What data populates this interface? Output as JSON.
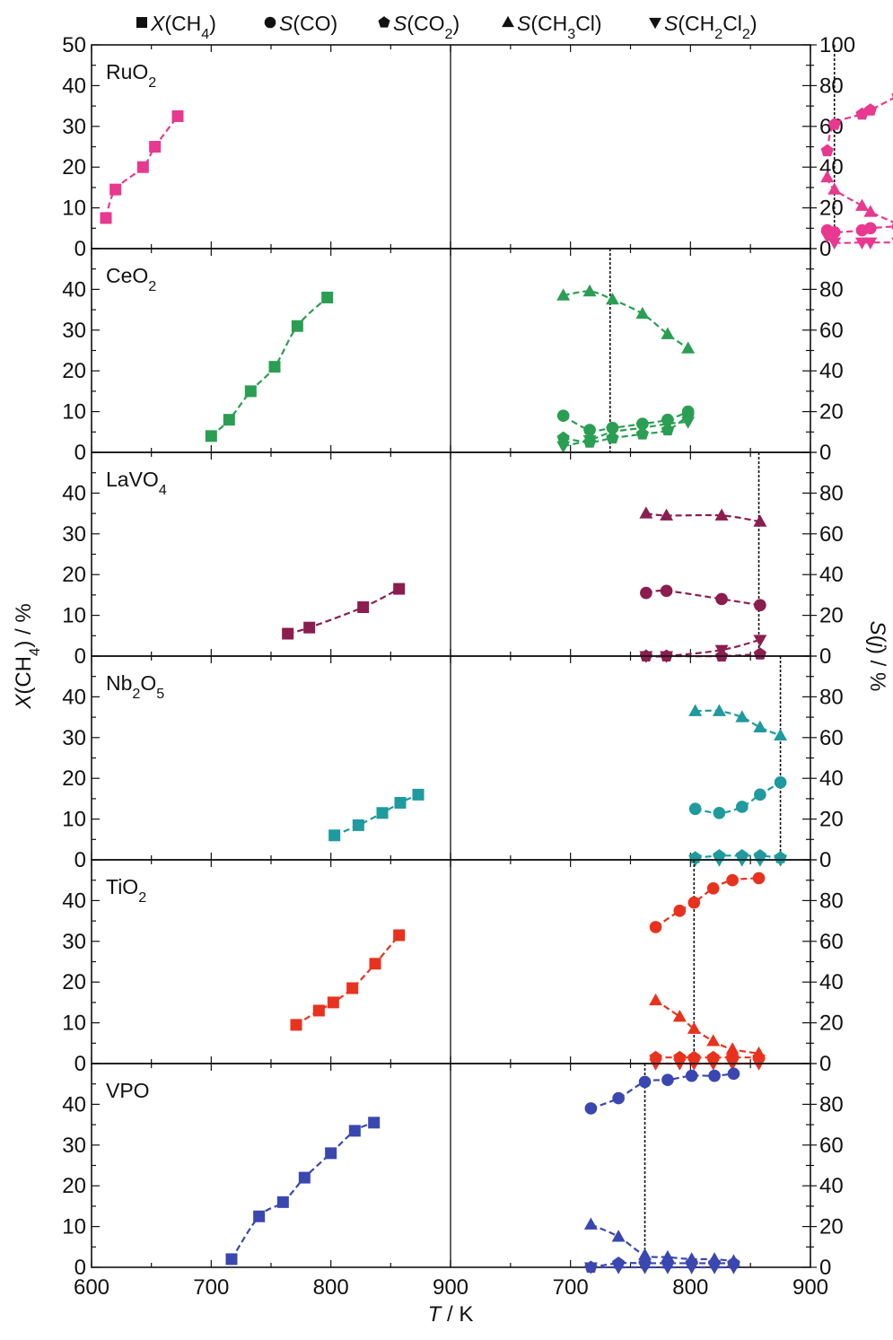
{
  "chart_data": {
    "type": "scatter",
    "legend": {
      "placement": "top",
      "entries": [
        {
          "key": "X_CH4",
          "marker": "square",
          "label_main": "X",
          "label_sub": "(CH",
          "sub": "4",
          "tail": ")"
        },
        {
          "key": "S_CO",
          "marker": "circle",
          "label_main": "S",
          "label_sub": "(CO)",
          "sub": "",
          "tail": ""
        },
        {
          "key": "S_CO2",
          "marker": "pentagon",
          "label_main": "S",
          "label_sub": "(CO",
          "sub": "2",
          "tail": ")"
        },
        {
          "key": "S_CH3Cl",
          "marker": "triangle-up",
          "label_main": "S",
          "label_sub": "(CH",
          "sub": "3",
          "tail": "Cl)"
        },
        {
          "key": "S_CH2Cl2",
          "marker": "triangle-down",
          "label_main": "S",
          "label_sub": "(CH",
          "sub": "2",
          "tail": "Cl",
          "sub2": "2",
          "tail2": ")"
        }
      ]
    },
    "x_axis": {
      "label_main": "T",
      "label_tail": " / K",
      "left_xlim": [
        600,
        900
      ],
      "right_xlim": [
        600,
        900
      ],
      "left_ticks": [
        "600",
        "700",
        "800",
        "900"
      ],
      "right_ticks": [
        "700",
        "800",
        "900"
      ]
    },
    "y_left": {
      "label_main": "X",
      "label_tail": "(CH",
      "sub": "4",
      "tail2": ") / %",
      "ylim": [
        0,
        50
      ]
    },
    "y_right": {
      "label_main": "S",
      "label_tail": "(",
      "italic": "j",
      "tail2": ") / %",
      "ylim": [
        0,
        100
      ]
    },
    "panels": [
      {
        "name": "RuO2",
        "label": "RuO",
        "sub": "2",
        "color": "#e8388f",
        "left_ticks": [
          "0",
          "10",
          "20",
          "30",
          "40",
          "50"
        ],
        "right_ticks": [
          "0",
          "20",
          "40",
          "60",
          "80",
          "100"
        ],
        "vline": 920,
        "X_CH4": [
          [
            612,
            7.5
          ],
          [
            620,
            14.5
          ],
          [
            643,
            20
          ],
          [
            653,
            25
          ],
          [
            672,
            32.5
          ]
        ],
        "S_CO": [
          [
            914,
            9
          ],
          [
            920,
            8
          ],
          [
            943,
            9
          ],
          [
            950,
            10
          ],
          [
            973,
            11
          ]
        ],
        "S_CO2": [
          [
            914,
            48
          ],
          [
            920,
            61
          ],
          [
            943,
            66
          ],
          [
            950,
            68
          ],
          [
            973,
            75
          ]
        ],
        "S_CH3Cl": [
          [
            914,
            35
          ],
          [
            920,
            29
          ],
          [
            943,
            21
          ],
          [
            950,
            18
          ],
          [
            973,
            12
          ]
        ],
        "S_CH2Cl2": [
          [
            914,
            6
          ],
          [
            920,
            3
          ],
          [
            943,
            3
          ],
          [
            950,
            3
          ],
          [
            973,
            3
          ]
        ]
      },
      {
        "name": "CeO2",
        "label": "CeO",
        "sub": "2",
        "color": "#2a9e52",
        "left_ticks": [
          "0",
          "10",
          "20",
          "30",
          "40"
        ],
        "right_ticks": [
          "0",
          "20",
          "40",
          "60",
          "80"
        ],
        "vline": 733,
        "X_CH4": [
          [
            700,
            4
          ],
          [
            715,
            8
          ],
          [
            733,
            15
          ],
          [
            753,
            21
          ],
          [
            772,
            31
          ],
          [
            797,
            38
          ]
        ],
        "S_CO": [
          [
            694,
            18
          ],
          [
            716,
            11
          ],
          [
            735,
            12
          ],
          [
            760,
            14
          ],
          [
            781,
            16
          ],
          [
            798,
            20
          ]
        ],
        "S_CO2": [
          [
            694,
            7
          ],
          [
            716,
            5
          ],
          [
            735,
            7
          ],
          [
            760,
            9
          ],
          [
            781,
            11
          ],
          [
            798,
            18
          ]
        ],
        "S_CH3Cl": [
          [
            694,
            77
          ],
          [
            716,
            79
          ],
          [
            735,
            75
          ],
          [
            760,
            68
          ],
          [
            781,
            58
          ],
          [
            798,
            51
          ]
        ],
        "S_CH2Cl2": [
          [
            694,
            3
          ],
          [
            716,
            6
          ],
          [
            735,
            10
          ],
          [
            760,
            12
          ],
          [
            781,
            14
          ],
          [
            798,
            15
          ]
        ]
      },
      {
        "name": "LaVO4",
        "label": "LaVO",
        "sub": "4",
        "color": "#8b1d4f",
        "left_ticks": [
          "0",
          "10",
          "20",
          "30",
          "40"
        ],
        "right_ticks": [
          "0",
          "20",
          "40",
          "60",
          "80"
        ],
        "vline": 857,
        "X_CH4": [
          [
            764,
            5.5
          ],
          [
            782,
            7
          ],
          [
            827,
            12
          ],
          [
            857,
            16.5
          ]
        ],
        "S_CO": [
          [
            763,
            31
          ],
          [
            780,
            32
          ],
          [
            826,
            28
          ],
          [
            858,
            25
          ]
        ],
        "S_CO2": [
          [
            763,
            0
          ],
          [
            780,
            0
          ],
          [
            826,
            0
          ],
          [
            858,
            1
          ]
        ],
        "S_CH3Cl": [
          [
            763,
            70
          ],
          [
            780,
            69
          ],
          [
            826,
            69
          ],
          [
            858,
            66
          ]
        ],
        "S_CH2Cl2": [
          [
            763,
            0
          ],
          [
            780,
            0
          ],
          [
            826,
            3
          ],
          [
            858,
            8
          ]
        ]
      },
      {
        "name": "Nb2O5",
        "label": "Nb",
        "sub": "2",
        "label2": "O",
        "sub2": "5",
        "color": "#1f9a9e",
        "left_ticks": [
          "0",
          "10",
          "20",
          "30",
          "40"
        ],
        "right_ticks": [
          "0",
          "20",
          "40",
          "60",
          "80"
        ],
        "vline": 875,
        "X_CH4": [
          [
            803,
            6
          ],
          [
            823,
            8.5
          ],
          [
            843,
            11.5
          ],
          [
            858,
            14
          ],
          [
            873,
            16
          ]
        ],
        "S_CO": [
          [
            804,
            25
          ],
          [
            824,
            23
          ],
          [
            843,
            26
          ],
          [
            858,
            32
          ],
          [
            875,
            38
          ]
        ],
        "S_CO2": [
          [
            804,
            1
          ],
          [
            824,
            2
          ],
          [
            843,
            2
          ],
          [
            858,
            2
          ],
          [
            875,
            1
          ]
        ],
        "S_CH3Cl": [
          [
            804,
            73
          ],
          [
            824,
            73
          ],
          [
            843,
            70
          ],
          [
            858,
            65
          ],
          [
            875,
            61
          ]
        ],
        "S_CH2Cl2": [
          [
            804,
            0
          ],
          [
            824,
            0
          ],
          [
            843,
            0
          ],
          [
            858,
            0
          ],
          [
            875,
            0
          ]
        ]
      },
      {
        "name": "TiO2",
        "label": "TiO",
        "sub": "2",
        "color": "#e8321e",
        "left_ticks": [
          "0",
          "10",
          "20",
          "30",
          "40"
        ],
        "right_ticks": [
          "0",
          "20",
          "40",
          "60",
          "80"
        ],
        "vline": 803,
        "X_CH4": [
          [
            771,
            9.5
          ],
          [
            790,
            13
          ],
          [
            802,
            15
          ],
          [
            818,
            18.5
          ],
          [
            837,
            24.5
          ],
          [
            857,
            31.5
          ]
        ],
        "S_CO": [
          [
            771,
            67
          ],
          [
            791,
            75
          ],
          [
            803,
            79
          ],
          [
            819,
            86
          ],
          [
            835,
            90
          ],
          [
            857,
            91
          ]
        ],
        "S_CO2": [
          [
            771,
            3
          ],
          [
            791,
            3
          ],
          [
            803,
            3
          ],
          [
            819,
            3
          ],
          [
            835,
            3
          ],
          [
            857,
            3
          ]
        ],
        "S_CH3Cl": [
          [
            771,
            31
          ],
          [
            791,
            23
          ],
          [
            803,
            17
          ],
          [
            819,
            11
          ],
          [
            835,
            7
          ],
          [
            857,
            5
          ]
        ],
        "S_CH2Cl2": [
          [
            771,
            0
          ],
          [
            791,
            0
          ],
          [
            803,
            0
          ],
          [
            819,
            0
          ],
          [
            835,
            0
          ],
          [
            857,
            0
          ]
        ]
      },
      {
        "name": "VPO",
        "label": "VPO",
        "sub": "",
        "color": "#3a47b0",
        "left_ticks": [
          "0",
          "10",
          "20",
          "30",
          "40"
        ],
        "right_ticks": [
          "0",
          "20",
          "40",
          "60",
          "80"
        ],
        "vline": 762,
        "X_CH4": [
          [
            717,
            2
          ],
          [
            740,
            12.5
          ],
          [
            760,
            16
          ],
          [
            778,
            22
          ],
          [
            800,
            28
          ],
          [
            820,
            33.5
          ],
          [
            836,
            35.5
          ]
        ],
        "S_CO": [
          [
            717,
            78
          ],
          [
            740,
            83
          ],
          [
            762,
            91
          ],
          [
            781,
            92
          ],
          [
            801,
            94
          ],
          [
            820,
            94
          ],
          [
            836,
            95
          ]
        ],
        "S_CO2": [
          [
            717,
            0
          ],
          [
            740,
            2
          ],
          [
            762,
            2
          ],
          [
            781,
            2
          ],
          [
            801,
            2
          ],
          [
            820,
            2
          ],
          [
            836,
            2
          ]
        ],
        "S_CH3Cl": [
          [
            717,
            21
          ],
          [
            740,
            15
          ],
          [
            762,
            6
          ],
          [
            781,
            5
          ],
          [
            801,
            4
          ],
          [
            820,
            4
          ],
          [
            836,
            3
          ]
        ],
        "S_CH2Cl2": [
          [
            717,
            0
          ],
          [
            740,
            0
          ],
          [
            762,
            0
          ],
          [
            781,
            0
          ],
          [
            801,
            0
          ],
          [
            820,
            0
          ],
          [
            836,
            0
          ]
        ]
      }
    ]
  }
}
